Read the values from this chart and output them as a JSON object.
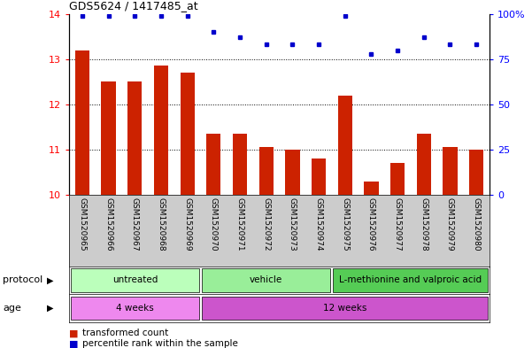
{
  "title": "GDS5624 / 1417485_at",
  "samples": [
    "GSM1520965",
    "GSM1520966",
    "GSM1520967",
    "GSM1520968",
    "GSM1520969",
    "GSM1520970",
    "GSM1520971",
    "GSM1520972",
    "GSM1520973",
    "GSM1520974",
    "GSM1520975",
    "GSM1520976",
    "GSM1520977",
    "GSM1520978",
    "GSM1520979",
    "GSM1520980"
  ],
  "bar_values": [
    13.2,
    12.5,
    12.5,
    12.85,
    12.7,
    11.35,
    11.35,
    11.05,
    11.0,
    10.8,
    12.2,
    10.3,
    10.7,
    11.35,
    11.05,
    11.0
  ],
  "percentile_values": [
    99,
    99,
    99,
    99,
    99,
    90,
    87,
    83,
    83,
    83,
    99,
    78,
    80,
    87,
    83,
    83
  ],
  "bar_color": "#cc2200",
  "dot_color": "#0000cc",
  "ylim_left": [
    10,
    14
  ],
  "ylim_right": [
    0,
    100
  ],
  "yticks_left": [
    10,
    11,
    12,
    13,
    14
  ],
  "yticks_right": [
    0,
    25,
    50,
    75,
    100
  ],
  "ytick_labels_right": [
    "0",
    "25",
    "50",
    "75",
    "100%"
  ],
  "grid_yticks": [
    11,
    12,
    13
  ],
  "protocol_groups": [
    {
      "label": "untreated",
      "start": 0,
      "end": 5,
      "color": "#bbffbb"
    },
    {
      "label": "vehicle",
      "start": 5,
      "end": 10,
      "color": "#99ee99"
    },
    {
      "label": "L-methionine and valproic acid",
      "start": 10,
      "end": 16,
      "color": "#55cc55"
    }
  ],
  "age_groups": [
    {
      "label": "4 weeks",
      "start": 0,
      "end": 5,
      "color": "#ee88ee"
    },
    {
      "label": "12 weeks",
      "start": 5,
      "end": 16,
      "color": "#cc55cc"
    }
  ],
  "legend_bar_label": "transformed count",
  "legend_dot_label": "percentile rank within the sample",
  "xlabel_protocol": "protocol",
  "xlabel_age": "age",
  "background_color": "#ffffff",
  "plot_bg_color": "#ffffff",
  "label_bg_color": "#cccccc",
  "fig_width": 6.01,
  "fig_height": 3.93,
  "fig_dpi": 100
}
